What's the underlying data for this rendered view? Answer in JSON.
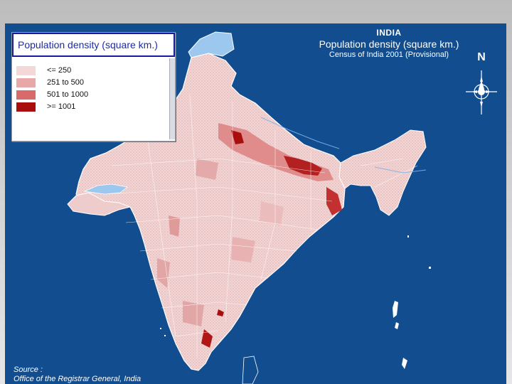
{
  "map": {
    "country": "INDIA",
    "title": "Population density (square km.)",
    "subtitle": "Census of India 2001 (Provisional)",
    "north_label": "N",
    "compass_icon": "compass-rose-icon"
  },
  "legend": {
    "title": "Population density (square km.)",
    "items": [
      {
        "label": "<= 250",
        "color": "#f4d8d8"
      },
      {
        "label": "251 to 500",
        "color": "#e9a8a8"
      },
      {
        "label": "501 to 1000",
        "color": "#d86a6a"
      },
      {
        "label": ">= 1001",
        "color": "#a80e0e"
      }
    ]
  },
  "source": {
    "label": "Source :",
    "text": "Office of the Registrar General, India"
  },
  "colors": {
    "ocean": "#114d8f",
    "disputed": "#9cc7ee",
    "border": "#ffffff",
    "title_text": "#ffffff",
    "legend_title_text": "#1c2aa8"
  }
}
